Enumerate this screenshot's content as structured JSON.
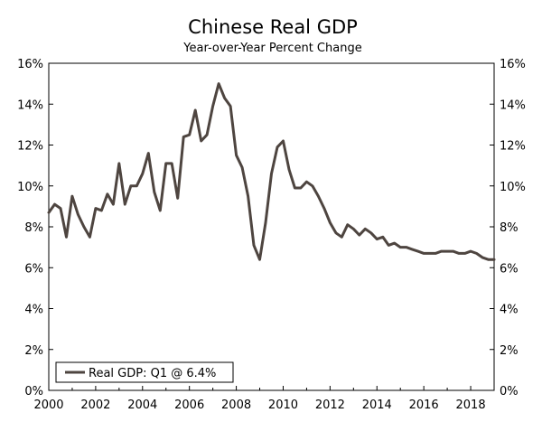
{
  "chart_data": {
    "type": "line",
    "title": "Chinese Real GDP",
    "subtitle": "Year-over-Year Percent Change",
    "xlabel": "",
    "ylabel": "",
    "xlim": [
      2000,
      2019
    ],
    "ylim": [
      0,
      16
    ],
    "x_ticks": [
      "2000",
      "2002",
      "2004",
      "2006",
      "2008",
      "2010",
      "2012",
      "2014",
      "2016",
      "2018"
    ],
    "y_ticks": [
      "0%",
      "2%",
      "4%",
      "6%",
      "8%",
      "10%",
      "12%",
      "14%",
      "16%"
    ],
    "grid": false,
    "legend_position": "bottom-left",
    "series": [
      {
        "name": "Real GDP: Q1 @ 6.4%",
        "color": "#4e4540",
        "x": [
          2000.0,
          2000.25,
          2000.5,
          2000.75,
          2001.0,
          2001.25,
          2001.5,
          2001.75,
          2002.0,
          2002.25,
          2002.5,
          2002.75,
          2003.0,
          2003.25,
          2003.5,
          2003.75,
          2004.0,
          2004.25,
          2004.5,
          2004.75,
          2005.0,
          2005.25,
          2005.5,
          2005.75,
          2006.0,
          2006.25,
          2006.5,
          2006.75,
          2007.0,
          2007.25,
          2007.5,
          2007.75,
          2008.0,
          2008.25,
          2008.5,
          2008.75,
          2009.0,
          2009.25,
          2009.5,
          2009.75,
          2010.0,
          2010.25,
          2010.5,
          2010.75,
          2011.0,
          2011.25,
          2011.5,
          2011.75,
          2012.0,
          2012.25,
          2012.5,
          2012.75,
          2013.0,
          2013.25,
          2013.5,
          2013.75,
          2014.0,
          2014.25,
          2014.5,
          2014.75,
          2015.0,
          2015.25,
          2015.5,
          2015.75,
          2016.0,
          2016.25,
          2016.5,
          2016.75,
          2017.0,
          2017.25,
          2017.5,
          2017.75,
          2018.0,
          2018.25,
          2018.5,
          2018.75,
          2019.0
        ],
        "values": [
          8.7,
          9.1,
          8.9,
          7.5,
          9.5,
          8.6,
          8.0,
          7.5,
          8.9,
          8.8,
          9.6,
          9.1,
          11.1,
          9.1,
          10.0,
          10.0,
          10.6,
          11.6,
          9.7,
          8.8,
          11.1,
          11.1,
          9.4,
          12.4,
          12.5,
          13.7,
          12.2,
          12.5,
          13.9,
          15.0,
          14.3,
          13.9,
          11.5,
          10.9,
          9.5,
          7.1,
          6.4,
          8.2,
          10.6,
          11.9,
          12.2,
          10.8,
          9.9,
          9.9,
          10.2,
          10.0,
          9.5,
          8.9,
          8.2,
          7.7,
          7.5,
          8.1,
          7.9,
          7.6,
          7.9,
          7.7,
          7.4,
          7.5,
          7.1,
          7.2,
          7.0,
          7.0,
          6.9,
          6.8,
          6.7,
          6.7,
          6.7,
          6.8,
          6.8,
          6.8,
          6.7,
          6.7,
          6.8,
          6.7,
          6.5,
          6.4,
          6.4
        ]
      }
    ]
  }
}
